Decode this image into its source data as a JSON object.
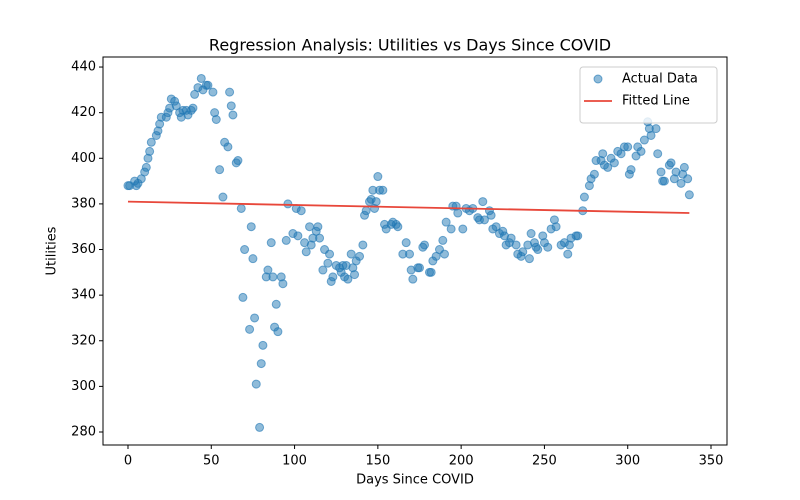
{
  "chart_data": {
    "type": "scatter",
    "title": "Regression Analysis: Utilities vs Days Since COVID",
    "xlabel": "Days Since COVID",
    "ylabel": "Utilities",
    "xlim": [
      -15,
      359.6
    ],
    "ylim": [
      274.3,
      444.4
    ],
    "xticks": [
      0,
      50,
      100,
      150,
      200,
      250,
      300,
      350
    ],
    "yticks": [
      280,
      300,
      320,
      340,
      360,
      380,
      400,
      420,
      440
    ],
    "legend": "upper right",
    "series": [
      {
        "name": "Actual Data",
        "type": "scatter",
        "color": "#1f77b4",
        "x": [
          0,
          1,
          4,
          5,
          6,
          8,
          10,
          11,
          12,
          13,
          14,
          17,
          18,
          19,
          20,
          23,
          24,
          25,
          26,
          28,
          29,
          31,
          32,
          33,
          35,
          36,
          38,
          39,
          40,
          42,
          44,
          45,
          47,
          48,
          51,
          52,
          53,
          55,
          57,
          58,
          60,
          61,
          62,
          63,
          65,
          66,
          68,
          69,
          70,
          73,
          74,
          75,
          76,
          77,
          79,
          80,
          81,
          83,
          84,
          86,
          87,
          88,
          89,
          90,
          92,
          93,
          95,
          96,
          99,
          101,
          102,
          104,
          106,
          107,
          109,
          110,
          111,
          113,
          114,
          115,
          117,
          118,
          120,
          121,
          122,
          123,
          125,
          127,
          128,
          129,
          130,
          131,
          132,
          134,
          135,
          136,
          137,
          139,
          141,
          142,
          143,
          145,
          146,
          147,
          148,
          149,
          150,
          151,
          153,
          154,
          155,
          158,
          159,
          161,
          162,
          165,
          167,
          169,
          170,
          171,
          174,
          175,
          177,
          178,
          181,
          182,
          183,
          185,
          187,
          189,
          190,
          191,
          194,
          195,
          197,
          198,
          201,
          203,
          205,
          207,
          210,
          211,
          213,
          214,
          217,
          218,
          219,
          221,
          223,
          225,
          226,
          227,
          229,
          230,
          233,
          234,
          236,
          237,
          240,
          241,
          242,
          244,
          245,
          246,
          249,
          250,
          252,
          254,
          256,
          257,
          260,
          262,
          264,
          265,
          266,
          269,
          270,
          273,
          274,
          277,
          278,
          280,
          281,
          284,
          285,
          286,
          288,
          290,
          292,
          294,
          296,
          298,
          300,
          301,
          302,
          305,
          306,
          308,
          310,
          312,
          313,
          314,
          317,
          318,
          320,
          321,
          322,
          325,
          326,
          328,
          329,
          332,
          333,
          334,
          336,
          337
        ],
        "values": [
          388,
          388,
          390,
          388,
          389,
          391,
          394,
          396,
          400,
          403,
          407,
          410,
          412,
          415,
          418,
          418,
          420,
          422,
          426,
          425,
          423,
          420,
          418,
          421,
          421,
          419,
          421,
          422,
          428,
          431,
          435,
          430,
          432,
          432,
          429,
          420,
          417,
          395,
          383,
          407,
          405,
          429,
          423,
          419,
          398,
          399,
          378,
          339,
          360,
          325,
          370,
          356,
          330,
          301,
          282,
          310,
          318,
          348,
          351,
          363,
          348,
          326,
          336,
          324,
          348,
          345,
          364,
          380,
          367,
          378,
          366,
          377,
          363,
          359,
          370,
          362,
          365,
          368,
          370,
          365,
          351,
          360,
          354,
          358,
          346,
          348,
          353,
          352,
          350,
          353,
          348,
          353,
          347,
          358,
          352,
          349,
          355,
          357,
          362,
          375,
          377,
          381,
          382,
          386,
          378,
          381,
          392,
          386,
          386,
          371,
          369,
          371,
          372,
          371,
          370,
          358,
          363,
          358,
          351,
          347,
          352,
          352,
          361,
          362,
          350,
          350,
          355,
          357,
          360,
          364,
          358,
          372,
          369,
          379,
          379,
          376,
          369,
          378,
          377,
          378,
          374,
          373,
          381,
          373,
          377,
          375,
          369,
          370,
          367,
          368,
          366,
          362,
          363,
          365,
          362,
          358,
          357,
          359,
          362,
          356,
          367,
          363,
          361,
          360,
          366,
          363,
          361,
          369,
          373,
          370,
          362,
          363,
          358,
          362,
          365,
          366,
          366,
          377,
          383,
          388,
          391,
          393,
          399,
          399,
          402,
          397,
          396,
          400,
          398,
          403,
          402,
          405,
          405,
          393,
          395,
          401,
          405,
          403,
          408,
          416,
          413,
          410,
          413,
          402,
          394,
          390,
          390,
          397,
          398,
          391,
          394,
          389,
          393,
          396,
          391,
          384
        ]
      },
      {
        "name": "Fitted Line",
        "type": "line",
        "color": "#e8473a",
        "x": [
          0,
          337
        ],
        "values": [
          381,
          376
        ]
      }
    ]
  }
}
